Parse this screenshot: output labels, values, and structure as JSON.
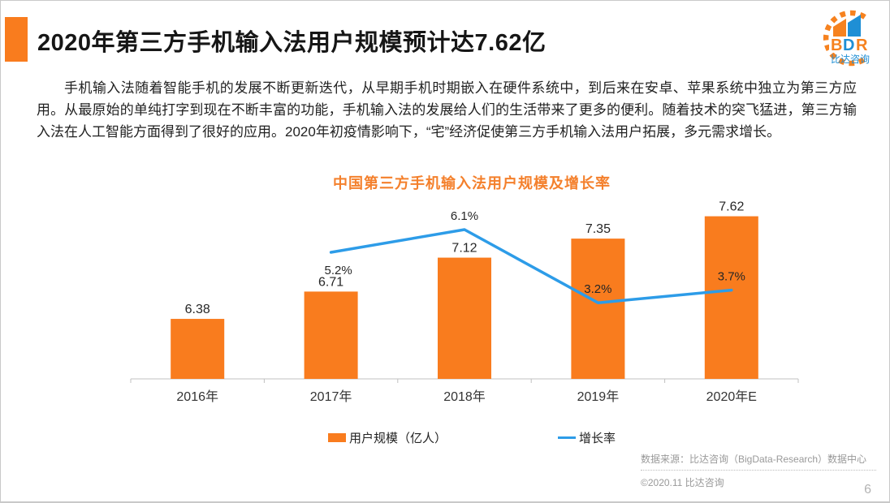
{
  "header": {
    "title": "2020年第三方手机输入法用户规模预计达7.62亿"
  },
  "logo": {
    "text": "BDR",
    "subtext": "比达咨询",
    "orange": "#f6821f",
    "blue": "#1f8fd5"
  },
  "intro": {
    "text": "手机输入法随着智能手机的发展不断更新迭代，从早期手机时期嵌入在硬件系统中，到后来在安卓、苹果系统中独立为第三方应用。从最原始的单纯打字到现在不断丰富的功能，手机输入法的发展给人们的生活带来了更多的便利。随着技术的突飞猛进，第三方输入法在人工智能方面得到了很好的应用。2020年初疫情影响下，“宅”经济促使第三方手机输入法用户拓展，多元需求增长。"
  },
  "chart_data": {
    "type": "bar",
    "title": "中国第三方手机输入法用户规模及增长率",
    "categories": [
      "2016年",
      "2017年",
      "2018年",
      "2019年",
      "2020年E"
    ],
    "series": [
      {
        "name": "用户规模（亿人）",
        "type": "bar",
        "values": [
          6.38,
          6.71,
          7.12,
          7.35,
          7.62
        ],
        "labels": [
          "6.38",
          "6.71",
          "7.12",
          "7.35",
          "7.62"
        ],
        "color": "#f97c1e"
      },
      {
        "name": "增长率",
        "type": "line",
        "values": [
          null,
          5.2,
          6.1,
          3.2,
          3.7
        ],
        "labels": [
          null,
          "5.2%",
          "6.1%",
          "3.2%",
          "3.7%"
        ],
        "color": "#2d9ce8"
      }
    ],
    "xlabel": "",
    "ylabel": "",
    "grid": false,
    "legend_position": "bottom",
    "axis_color": "#c0c0c0"
  },
  "footer": {
    "source": "数据来源：比达咨询（BigData-Research）数据中心",
    "copyright": "©2020.11  比达咨询",
    "page_number": "6"
  }
}
